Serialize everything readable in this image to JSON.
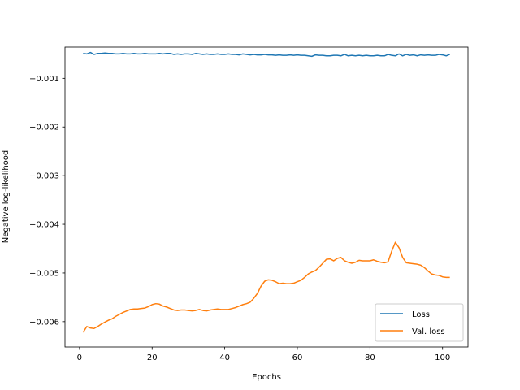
{
  "chart_data": {
    "type": "line",
    "title": "",
    "xlabel": "Epochs",
    "ylabel": "Negative log-likelihood",
    "xlim": [
      -4,
      107
    ],
    "ylim": [
      -0.00652,
      -0.00036
    ],
    "xticks": [
      0,
      20,
      40,
      60,
      80,
      100
    ],
    "xtick_labels": [
      "0",
      "20",
      "40",
      "60",
      "80",
      "100"
    ],
    "yticks": [
      -0.001,
      -0.002,
      -0.003,
      -0.004,
      -0.005,
      -0.006
    ],
    "ytick_labels": [
      "−0.001",
      "−0.002",
      "−0.003",
      "−0.004",
      "−0.005",
      "−0.006"
    ],
    "grid": false,
    "legend_position": "bottom-right",
    "series": [
      {
        "name": "Loss",
        "color": "#1f77b4",
        "x": [
          1,
          2,
          3,
          4,
          5,
          6,
          7,
          8,
          9,
          10,
          11,
          12,
          13,
          14,
          15,
          16,
          17,
          18,
          19,
          20,
          21,
          22,
          23,
          24,
          25,
          26,
          27,
          28,
          29,
          30,
          31,
          32,
          33,
          34,
          35,
          36,
          37,
          38,
          39,
          40,
          41,
          42,
          43,
          44,
          45,
          46,
          47,
          48,
          49,
          50,
          51,
          52,
          53,
          54,
          55,
          56,
          57,
          58,
          59,
          60,
          61,
          62,
          63,
          64,
          65,
          66,
          67,
          68,
          69,
          70,
          71,
          72,
          73,
          74,
          75,
          76,
          77,
          78,
          79,
          80,
          81,
          82,
          83,
          84,
          85,
          86,
          87,
          88,
          89,
          90,
          91,
          92,
          93,
          94,
          95,
          96,
          97,
          98,
          99,
          100,
          101,
          102
        ],
        "y": [
          -0.00049,
          -0.0005,
          -0.00047,
          -0.00051,
          -0.00049,
          -0.00049,
          -0.00048,
          -0.00049,
          -0.00049,
          -0.0005,
          -0.0005,
          -0.00049,
          -0.0005,
          -0.0005,
          -0.00049,
          -0.0005,
          -0.0005,
          -0.00049,
          -0.0005,
          -0.0005,
          -0.0005,
          -0.00049,
          -0.0005,
          -0.00049,
          -0.00049,
          -0.00051,
          -0.0005,
          -0.00051,
          -0.0005,
          -0.0005,
          -0.00051,
          -0.00049,
          -0.0005,
          -0.00051,
          -0.0005,
          -0.00051,
          -0.00051,
          -0.0005,
          -0.00051,
          -0.00051,
          -0.0005,
          -0.00051,
          -0.00051,
          -0.00052,
          -0.0005,
          -0.00051,
          -0.00052,
          -0.00051,
          -0.00052,
          -0.00052,
          -0.00051,
          -0.00052,
          -0.00052,
          -0.00053,
          -0.00052,
          -0.00053,
          -0.00053,
          -0.00052,
          -0.00053,
          -0.00052,
          -0.00053,
          -0.00053,
          -0.00054,
          -0.00055,
          -0.00052,
          -0.00053,
          -0.00053,
          -0.00054,
          -0.00054,
          -0.00053,
          -0.00053,
          -0.00054,
          -0.00051,
          -0.00054,
          -0.00053,
          -0.00054,
          -0.00053,
          -0.00054,
          -0.00053,
          -0.00054,
          -0.00054,
          -0.00053,
          -0.00054,
          -0.00054,
          -0.00051,
          -0.00053,
          -0.00054,
          -0.0005,
          -0.00054,
          -0.00051,
          -0.00053,
          -0.00052,
          -0.00054,
          -0.00052,
          -0.00053,
          -0.00052,
          -0.00053,
          -0.00053,
          -0.00051,
          -0.00052,
          -0.00054,
          -0.00051
        ]
      },
      {
        "name": "Val. loss",
        "color": "#ff7f0e",
        "x": [
          1,
          2,
          3,
          4,
          5,
          6,
          7,
          8,
          9,
          10,
          11,
          12,
          13,
          14,
          15,
          16,
          17,
          18,
          19,
          20,
          21,
          22,
          23,
          24,
          25,
          26,
          27,
          28,
          29,
          30,
          31,
          32,
          33,
          34,
          35,
          36,
          37,
          38,
          39,
          40,
          41,
          42,
          43,
          44,
          45,
          46,
          47,
          48,
          49,
          50,
          51,
          52,
          53,
          54,
          55,
          56,
          57,
          58,
          59,
          60,
          61,
          62,
          63,
          64,
          65,
          66,
          67,
          68,
          69,
          70,
          71,
          72,
          73,
          74,
          75,
          76,
          77,
          78,
          79,
          80,
          81,
          82,
          83,
          84,
          85,
          86,
          87,
          88,
          89,
          90,
          91,
          92,
          93,
          94,
          95,
          96,
          97,
          98,
          99,
          100,
          101,
          102
        ],
        "y": [
          -0.00622,
          -0.0061,
          -0.00613,
          -0.00614,
          -0.0061,
          -0.00605,
          -0.00601,
          -0.00597,
          -0.00594,
          -0.00589,
          -0.00585,
          -0.00581,
          -0.00578,
          -0.00575,
          -0.00574,
          -0.00574,
          -0.00573,
          -0.00572,
          -0.00569,
          -0.00565,
          -0.00563,
          -0.00564,
          -0.00568,
          -0.0057,
          -0.00573,
          -0.00576,
          -0.00577,
          -0.00576,
          -0.00576,
          -0.00577,
          -0.00578,
          -0.00577,
          -0.00575,
          -0.00577,
          -0.00578,
          -0.00576,
          -0.00575,
          -0.00574,
          -0.00575,
          -0.00575,
          -0.00575,
          -0.00573,
          -0.00571,
          -0.00568,
          -0.00565,
          -0.00563,
          -0.0056,
          -0.00552,
          -0.00542,
          -0.00527,
          -0.00517,
          -0.00514,
          -0.00515,
          -0.00518,
          -0.00522,
          -0.00521,
          -0.00522,
          -0.00522,
          -0.00521,
          -0.00518,
          -0.00515,
          -0.00509,
          -0.00502,
          -0.00498,
          -0.00495,
          -0.00488,
          -0.0048,
          -0.00472,
          -0.00471,
          -0.00475,
          -0.0047,
          -0.00468,
          -0.00475,
          -0.00478,
          -0.0048,
          -0.00478,
          -0.00474,
          -0.00475,
          -0.00475,
          -0.00475,
          -0.00473,
          -0.00476,
          -0.00478,
          -0.00479,
          -0.00477,
          -0.00455,
          -0.00437,
          -0.00448,
          -0.00468,
          -0.00479,
          -0.0048,
          -0.00481,
          -0.00482,
          -0.00484,
          -0.00489,
          -0.00496,
          -0.00502,
          -0.00504,
          -0.00505,
          -0.00508,
          -0.00509,
          -0.00509
        ]
      }
    ]
  }
}
